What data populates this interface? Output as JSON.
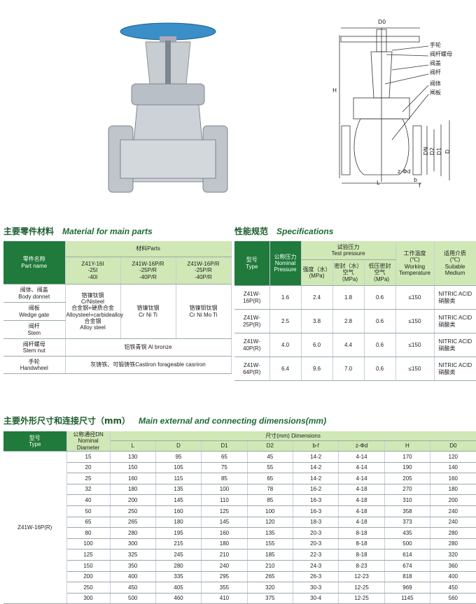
{
  "drawing": {
    "labels": [
      "D0",
      "手轮",
      "阀杆螺母",
      "阀盖",
      "阀杆",
      "阀体",
      "闸板",
      "H",
      "DN",
      "D2",
      "D1",
      "D",
      "L",
      "b",
      "f",
      "z-Φd"
    ]
  },
  "materials": {
    "title": "主要零件材料",
    "title_en": "Material for main parts",
    "head_part": [
      "零件名称",
      "Part name"
    ],
    "head_materials": "材料Parts",
    "models": [
      [
        "Z41Y-16I",
        "-25I",
        "-40I"
      ],
      [
        "Z41W-16P/R",
        "-25P/R",
        "-40P/R"
      ],
      [
        "Z41W-16P/R",
        "-25P/R",
        "-40P/R"
      ]
    ],
    "parts": [
      [
        "阀体、阀盖",
        "Body donnet"
      ],
      [
        "阀板",
        "Wedge gate"
      ],
      [
        "阀杆",
        "Stem"
      ],
      [
        "阀杆螺母",
        "Stem nut"
      ],
      [
        "手轮",
        "Handwheel"
      ]
    ],
    "main_materials": [
      [
        "铬镍钛钢",
        "CrNisteel",
        "合金钢+硬质合金",
        "Alloysteel+carbidealloy",
        "合金钢",
        "Alloy steel"
      ],
      [
        "铬镍钛钢",
        "Cr Ni Ti"
      ],
      [
        "铬镍钼钛钢",
        "Cr Ni Mo Ti"
      ]
    ],
    "stem_nut_material": "铝铁青铜 Al bronze",
    "handwheel_material": "灰铸铁、可锻铸铁Castiron forageable casriron"
  },
  "specifications": {
    "title": "性能规范",
    "title_en": "Specifications",
    "head_type": [
      "型号",
      "Type"
    ],
    "head_pressure": [
      "公称压力",
      "Nominal",
      "Pressure"
    ],
    "head_test": [
      "试验压力",
      "Test pressure"
    ],
    "head_test_cols": [
      [
        "强度（水）",
        "(MPa)"
      ],
      [
        "密封（水）",
        "空气（MPa)"
      ],
      [
        "低压密封",
        "空气（MPa)"
      ]
    ],
    "head_temp": [
      "工作温度",
      "(℃)",
      "Working",
      "Temperature"
    ],
    "head_medium": [
      "适用介质",
      "(℃)",
      "Suitable",
      "Medium"
    ],
    "rows": [
      [
        "Z41W-16P(R)",
        "1.6",
        "2.4",
        "1.8",
        "0.6",
        "≤150",
        [
          "NITRIC ACID",
          "硝酸类"
        ]
      ],
      [
        "Z41W-25P(R)",
        "2.5",
        "3.8",
        "2.8",
        "0.6",
        "≤150",
        [
          "NITRIC ACID",
          "硝酸类"
        ]
      ],
      [
        "Z41W-40P(R)",
        "4.0",
        "6.0",
        "4.4",
        "0.6",
        "≤150",
        [
          "NITRIC ACID",
          "硝酸类"
        ]
      ],
      [
        "Z41W-64P(R)",
        "6.4",
        "9.6",
        "7.0",
        "0.6",
        "≤150",
        [
          "NITRIC ACID",
          "硝酸类"
        ]
      ]
    ]
  },
  "dimensions": {
    "title": "主要外形尺寸和连接尺寸（mm）",
    "title_en": "Main external and connecting dimensions(mm)",
    "head_type": [
      "型号",
      "Type"
    ],
    "head_dn": [
      "公称通径DN",
      "Nominal",
      "Diameter"
    ],
    "head_dims": "尺寸(mm) Dimensions",
    "columns": [
      "L",
      "D",
      "D1",
      "D2",
      "b-f",
      "z-Φd",
      "H",
      "D0"
    ],
    "type": "Z41W-16P(R)",
    "rows": [
      [
        "15",
        "130",
        "95",
        "65",
        "45",
        "14-2",
        "4-14",
        "170",
        "120"
      ],
      [
        "20",
        "150",
        "105",
        "75",
        "55",
        "14-2",
        "4-14",
        "190",
        "140"
      ],
      [
        "25",
        "160",
        "115",
        "85",
        "65",
        "14-2",
        "4-14",
        "205",
        "160"
      ],
      [
        "32",
        "180",
        "135",
        "100",
        "78",
        "16-2",
        "4-18",
        "270",
        "180"
      ],
      [
        "40",
        "200",
        "145",
        "110",
        "85",
        "16-3",
        "4-18",
        "310",
        "200"
      ],
      [
        "50",
        "250",
        "160",
        "125",
        "100",
        "16-3",
        "4-18",
        "358",
        "240"
      ],
      [
        "65",
        "265",
        "180",
        "145",
        "120",
        "18-3",
        "4-18",
        "373",
        "240"
      ],
      [
        "80",
        "280",
        "195",
        "160",
        "135",
        "20-3",
        "8-18",
        "435",
        "280"
      ],
      [
        "100",
        "300",
        "215",
        "180",
        "155",
        "20-3",
        "8-18",
        "500",
        "280"
      ],
      [
        "125",
        "325",
        "245",
        "210",
        "185",
        "22-3",
        "8-18",
        "614",
        "320"
      ],
      [
        "150",
        "350",
        "280",
        "240",
        "210",
        "24-3",
        "8-23",
        "674",
        "360"
      ],
      [
        "200",
        "400",
        "335",
        "295",
        "265",
        "26-3",
        "12-23",
        "818",
        "400"
      ],
      [
        "250",
        "450",
        "405",
        "355",
        "320",
        "30-3",
        "12-25",
        "969",
        "450"
      ],
      [
        "300",
        "500",
        "460",
        "410",
        "375",
        "30-4",
        "12-25",
        "1145",
        "560"
      ]
    ]
  }
}
